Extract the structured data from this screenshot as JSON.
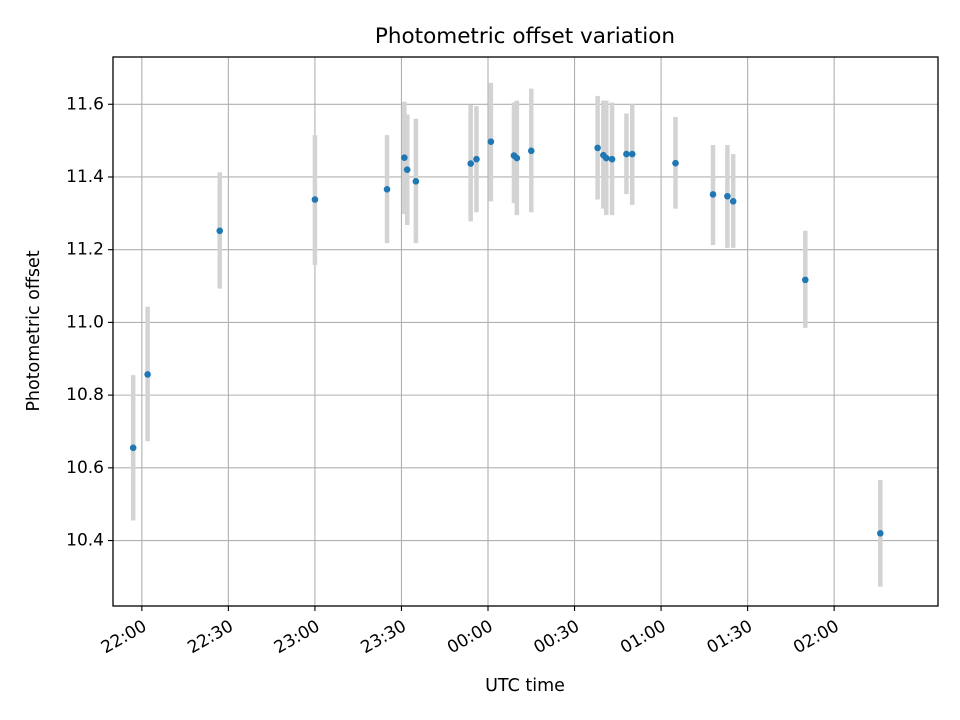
{
  "chart_data": {
    "type": "scatter",
    "title": "Photometric offset variation",
    "xlabel": "UTC time",
    "ylabel": "Photometric offset",
    "x_unit": "UTC clock time (hours past midnight at start of night; values past 24 roll into next day)",
    "xlim": [
      "21:50",
      "02:36"
    ],
    "ylim": [
      10.22,
      11.73
    ],
    "x_ticks": [
      "22:00",
      "22:30",
      "23:00",
      "23:30",
      "00:00",
      "00:30",
      "01:00",
      "01:30",
      "02:00"
    ],
    "y_ticks": [
      "10.4",
      "10.6",
      "10.8",
      "11.0",
      "11.2",
      "11.4",
      "11.6"
    ],
    "grid": true,
    "colors": {
      "point": "#1f77b4",
      "errorbar": "#d3d3d3",
      "grid": "#b0b0b0"
    },
    "points": [
      {
        "t": "21:57",
        "y": 10.655,
        "lo": 10.455,
        "hi": 10.855
      },
      {
        "t": "22:02",
        "y": 10.857,
        "lo": 10.673,
        "hi": 11.043
      },
      {
        "t": "22:27",
        "y": 11.252,
        "lo": 11.093,
        "hi": 11.413
      },
      {
        "t": "23:00",
        "y": 11.338,
        "lo": 11.158,
        "hi": 11.515
      },
      {
        "t": "23:25",
        "y": 11.366,
        "lo": 11.218,
        "hi": 11.515
      },
      {
        "t": "23:31",
        "y": 11.453,
        "lo": 11.298,
        "hi": 11.607
      },
      {
        "t": "23:32",
        "y": 11.42,
        "lo": 11.268,
        "hi": 11.572
      },
      {
        "t": "23:35",
        "y": 11.388,
        "lo": 11.218,
        "hi": 11.56
      },
      {
        "t": "23:54",
        "y": 11.437,
        "lo": 11.278,
        "hi": 11.598
      },
      {
        "t": "23:56",
        "y": 11.449,
        "lo": 11.303,
        "hi": 11.595
      },
      {
        "t": "00:01",
        "y": 11.497,
        "lo": 11.333,
        "hi": 11.659
      },
      {
        "t": "00:09",
        "y": 11.459,
        "lo": 11.328,
        "hi": 11.605
      },
      {
        "t": "00:10",
        "y": 11.452,
        "lo": 11.295,
        "hi": 11.61
      },
      {
        "t": "00:15",
        "y": 11.472,
        "lo": 11.303,
        "hi": 11.643
      },
      {
        "t": "00:38",
        "y": 11.48,
        "lo": 11.338,
        "hi": 11.623
      },
      {
        "t": "00:40",
        "y": 11.46,
        "lo": 11.313,
        "hi": 11.61
      },
      {
        "t": "00:41",
        "y": 11.452,
        "lo": 11.295,
        "hi": 11.61
      },
      {
        "t": "00:43",
        "y": 11.449,
        "lo": 11.295,
        "hi": 11.605
      },
      {
        "t": "00:48",
        "y": 11.463,
        "lo": 11.353,
        "hi": 11.575
      },
      {
        "t": "00:50",
        "y": 11.463,
        "lo": 11.323,
        "hi": 11.6
      },
      {
        "t": "01:05",
        "y": 11.438,
        "lo": 11.313,
        "hi": 11.565
      },
      {
        "t": "01:18",
        "y": 11.352,
        "lo": 11.213,
        "hi": 11.488
      },
      {
        "t": "01:23",
        "y": 11.347,
        "lo": 11.205,
        "hi": 11.488
      },
      {
        "t": "01:25",
        "y": 11.333,
        "lo": 11.205,
        "hi": 11.463
      },
      {
        "t": "01:50",
        "y": 11.117,
        "lo": 10.985,
        "hi": 11.252
      },
      {
        "t": "02:16",
        "y": 10.42,
        "lo": 10.273,
        "hi": 10.567
      }
    ]
  }
}
